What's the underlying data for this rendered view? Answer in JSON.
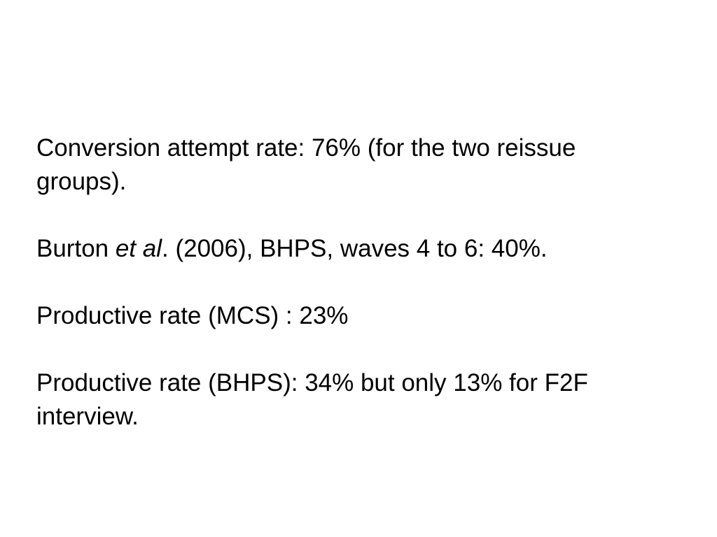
{
  "slide": {
    "paragraphs": [
      {
        "lines": [
          "Conversion attempt rate: 76% (for the two reissue",
          "groups)."
        ]
      },
      {
        "runs": [
          "Burton ",
          "et al",
          ". (2006), BHPS, waves 4 to 6: 40%."
        ]
      },
      {
        "lines": [
          "Productive rate (MCS) : 23%"
        ]
      },
      {
        "lines": [
          "Productive rate (BHPS): 34% but only 13% for F2F",
          "interview."
        ]
      }
    ]
  }
}
